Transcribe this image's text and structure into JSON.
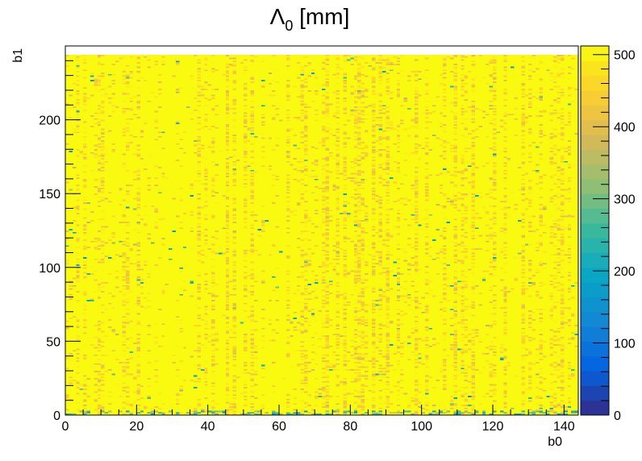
{
  "chart_data": {
    "type": "heatmap",
    "title": "Λ",
    "title_subscript": "0",
    "title_suffix": " [mm]",
    "xlabel": "b0",
    "ylabel": "b1",
    "xlim": [
      0,
      144
    ],
    "ylim": [
      0,
      250
    ],
    "x_ticks": [
      0,
      20,
      40,
      60,
      80,
      100,
      120,
      140
    ],
    "y_ticks": [
      0,
      50,
      100,
      150,
      200
    ],
    "z_range": [
      0,
      512
    ],
    "z_ticks": [
      0,
      100,
      200,
      300,
      400,
      500
    ],
    "colormap": "kBird",
    "colormap_stops": [
      "#352a87",
      "#0363e1",
      "#1485d4",
      "#06a7c6",
      "#38b99e",
      "#92bf73",
      "#d9ba56",
      "#fcce2e",
      "#f9fb0e"
    ],
    "dominant_value": 510,
    "typical_fluctuation_range": [
      400,
      512
    ],
    "grid": false,
    "legend": "color bar at right",
    "nx_bins": 144,
    "ny_bins": 250
  }
}
